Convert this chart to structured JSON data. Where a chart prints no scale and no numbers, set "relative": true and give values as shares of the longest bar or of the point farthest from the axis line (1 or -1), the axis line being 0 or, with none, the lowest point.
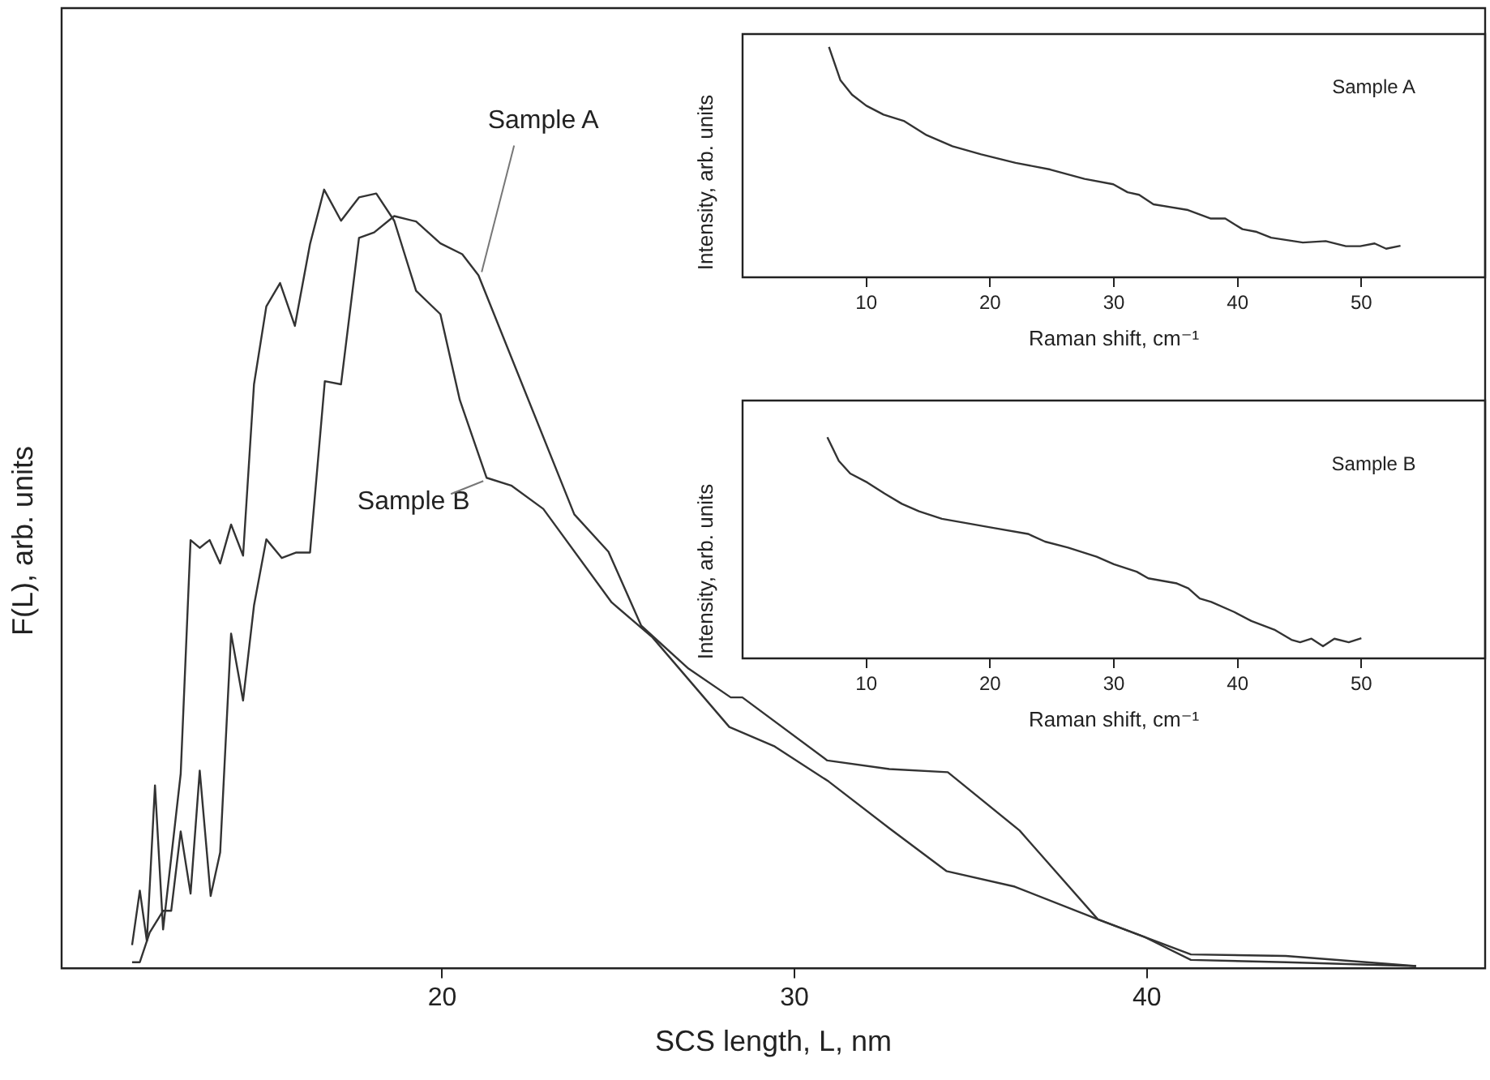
{
  "chart_data": [
    {
      "type": "line",
      "xlabel": "SCS length, L, nm",
      "ylabel": "F(L), arb. units",
      "relative": true,
      "xlim": [
        9.2,
        49.6
      ],
      "xticks": [
        20,
        30,
        40
      ],
      "series": [
        {
          "name": "Sample A",
          "color": "#333333",
          "x": [
            11.2,
            11.42,
            11.7,
            12.08,
            12.31,
            12.58,
            12.86,
            13.12,
            13.43,
            13.7,
            14.01,
            14.35,
            14.66,
            15.01,
            15.45,
            15.86,
            16.25,
            16.67,
            17.13,
            17.64,
            18.07,
            18.64,
            19.26,
            19.95,
            20.57,
            21.03,
            23.75,
            24.72,
            25.65,
            26.99,
            28.19,
            28.52,
            30.93,
            32.69,
            34.35,
            36.39,
            38.61,
            39.95,
            41.25,
            43.94,
            47.64
          ],
          "values": [
            0.008,
            0.008,
            0.046,
            0.074,
            0.074,
            0.176,
            0.096,
            0.254,
            0.093,
            0.149,
            0.43,
            0.344,
            0.466,
            0.551,
            0.527,
            0.534,
            0.534,
            0.754,
            0.75,
            0.938,
            0.945,
            0.966,
            0.959,
            0.931,
            0.917,
            0.89,
            0.583,
            0.535,
            0.44,
            0.385,
            0.348,
            0.348,
            0.267,
            0.256,
            0.252,
            0.177,
            0.063,
            0.04,
            0.018,
            0.016,
            0.003
          ]
        },
        {
          "name": "Sample B",
          "color": "#333333",
          "x": [
            11.2,
            11.42,
            11.62,
            11.85,
            12.08,
            12.58,
            12.86,
            13.12,
            13.4,
            13.7,
            14.01,
            14.35,
            14.66,
            15.01,
            15.4,
            15.82,
            16.25,
            16.65,
            17.13,
            17.64,
            18.13,
            18.64,
            19.26,
            19.95,
            20.5,
            21.26,
            21.96,
            22.87,
            24.81,
            25.97,
            28.15,
            29.44,
            30.97,
            32.69,
            34.31,
            36.25,
            38.61,
            39.95,
            41.25,
            43.95,
            47.64
          ],
          "values": [
            0.03,
            0.1,
            0.035,
            0.235,
            0.05,
            0.25,
            0.55,
            0.54,
            0.55,
            0.52,
            0.57,
            0.53,
            0.75,
            0.85,
            0.88,
            0.825,
            0.93,
            1.0,
            0.96,
            0.99,
            0.995,
            0.96,
            0.87,
            0.84,
            0.73,
            0.63,
            0.62,
            0.59,
            0.47,
            0.425,
            0.31,
            0.285,
            0.24,
            0.18,
            0.125,
            0.105,
            0.063,
            0.04,
            0.011,
            0.008,
            0.003
          ]
        }
      ]
    },
    {
      "type": "line",
      "xlabel": "Raman shift, cm⁻¹",
      "ylabel": "Intensity, arb. units",
      "relative": true,
      "xlim": [
        0,
        60
      ],
      "xticks": [
        10,
        20,
        30,
        40,
        50
      ],
      "series": [
        {
          "name": "Sample A",
          "color": "#333333",
          "x": [
            6.98,
            7.91,
            8.84,
            10,
            11.39,
            13.02,
            14.87,
            16.96,
            19.28,
            22.06,
            24.85,
            27.63,
            29.95,
            31.11,
            32.04,
            33.2,
            35.99,
            37.84,
            39,
            40.39,
            41.55,
            42.71,
            45.27,
            47.12,
            48.75,
            49.91,
            51.07,
            52,
            53.16
          ],
          "values": [
            1.0,
            0.855,
            0.793,
            0.745,
            0.706,
            0.679,
            0.617,
            0.569,
            0.534,
            0.497,
            0.468,
            0.427,
            0.404,
            0.369,
            0.358,
            0.317,
            0.292,
            0.255,
            0.255,
            0.209,
            0.197,
            0.172,
            0.151,
            0.157,
            0.135,
            0.135,
            0.147,
            0.124,
            0.137
          ]
        }
      ]
    },
    {
      "type": "line",
      "xlabel": "Raman shift, cm⁻¹",
      "ylabel": "Intensity, arb. units",
      "relative": true,
      "xlim": [
        0,
        60
      ],
      "xticks": [
        10,
        20,
        30,
        40,
        50
      ],
      "series": [
        {
          "name": "Sample B",
          "color": "#333333",
          "x": [
            6.85,
            7.78,
            8.7,
            10.09,
            11.48,
            12.87,
            14.26,
            16.11,
            18.43,
            20.28,
            23.06,
            24.44,
            26.3,
            28.61,
            30,
            31.85,
            32.78,
            35.09,
            36.02,
            36.94,
            37.87,
            39.72,
            41.11,
            42.96,
            44.35,
            45.05,
            45.97,
            46.9,
            47.82,
            48.98,
            50
          ],
          "values": [
            1.0,
            0.893,
            0.836,
            0.795,
            0.745,
            0.699,
            0.665,
            0.631,
            0.608,
            0.59,
            0.563,
            0.528,
            0.501,
            0.46,
            0.426,
            0.392,
            0.362,
            0.339,
            0.317,
            0.271,
            0.255,
            0.21,
            0.169,
            0.13,
            0.084,
            0.073,
            0.089,
            0.055,
            0.089,
            0.073,
            0.091
          ]
        }
      ]
    }
  ]
}
